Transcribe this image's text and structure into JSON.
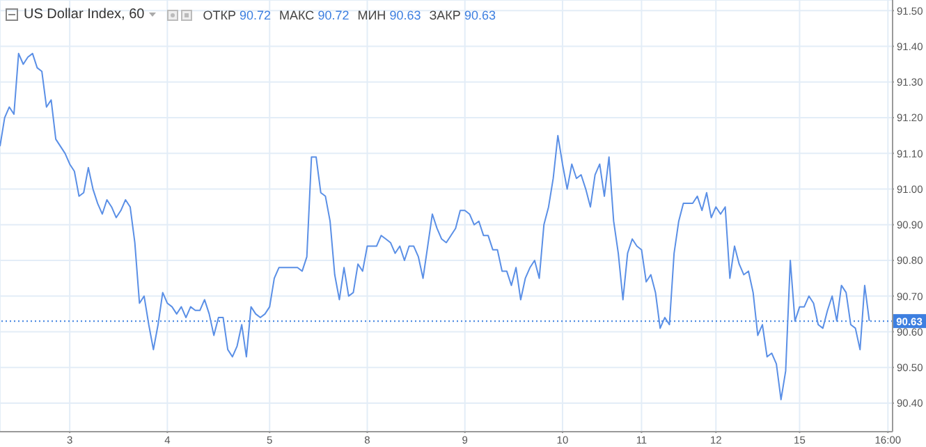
{
  "chart_data": {
    "type": "line",
    "title": "US Dollar Index, 60",
    "annotations": [
      "ОТКР 90.72",
      "МАКС 90.72",
      "МИН 90.63",
      "ЗАКР 90.63"
    ],
    "categories": [
      null,
      null,
      null,
      null,
      null,
      null,
      null,
      null,
      null,
      null,
      null,
      null,
      null,
      null,
      null,
      "3",
      null,
      null,
      null,
      null,
      null,
      null,
      null,
      null,
      null,
      null,
      null,
      null,
      null,
      null,
      null,
      null,
      null,
      null,
      null,
      null,
      "4",
      null,
      null,
      null,
      null,
      null,
      null,
      null,
      null,
      null,
      null,
      null,
      null,
      null,
      null,
      null,
      null,
      null,
      null,
      null,
      null,
      null,
      "5",
      null,
      null,
      null,
      null,
      null,
      null,
      null,
      null,
      null,
      null,
      null,
      null,
      null,
      null,
      null,
      null,
      null,
      null,
      null,
      null,
      "8",
      null,
      null,
      null,
      null,
      null,
      null,
      null,
      null,
      null,
      null,
      null,
      null,
      null,
      null,
      null,
      null,
      null,
      null,
      null,
      null,
      "9",
      null,
      null,
      null,
      null,
      null,
      null,
      null,
      null,
      null,
      null,
      null,
      null,
      null,
      null,
      null,
      null,
      null,
      null,
      null,
      null,
      "10",
      null,
      null,
      null,
      null,
      null,
      null,
      null,
      null,
      null,
      null,
      null,
      null,
      null,
      null,
      null,
      null,
      "11",
      null,
      null,
      null,
      null,
      null,
      null,
      null,
      null,
      null,
      null,
      null,
      null,
      null,
      null,
      null,
      "12",
      null,
      null,
      null,
      null,
      null,
      null,
      null,
      null,
      null,
      null,
      null,
      null,
      null,
      null,
      null,
      null,
      null,
      "15",
      null,
      null,
      null,
      null,
      null,
      null,
      null,
      null,
      null,
      null,
      null,
      null,
      null,
      null,
      null,
      null,
      null,
      null,
      "16:00",
      null
    ],
    "series": [
      {
        "color": "#5a8fe6",
        "values": [
          91.12,
          91.2,
          91.23,
          91.21,
          91.38,
          91.35,
          91.37,
          91.38,
          91.34,
          91.33,
          91.23,
          91.25,
          91.14,
          91.12,
          91.1,
          91.07,
          91.05,
          90.98,
          90.99,
          91.06,
          91.0,
          90.96,
          90.93,
          90.97,
          90.95,
          90.92,
          90.94,
          90.97,
          90.95,
          90.85,
          90.68,
          90.7,
          90.62,
          90.55,
          90.62,
          90.71,
          90.68,
          90.67,
          90.65,
          90.67,
          90.64,
          90.67,
          90.66,
          90.66,
          90.69,
          90.65,
          90.59,
          90.64,
          90.64,
          90.55,
          90.53,
          90.56,
          90.62,
          90.53,
          90.67,
          90.65,
          90.64,
          90.65,
          90.67,
          90.75,
          90.78,
          90.78,
          90.78,
          90.78,
          90.78,
          90.77,
          90.81,
          91.09,
          91.09,
          90.99,
          90.98,
          90.91,
          90.76,
          90.69,
          90.78,
          90.7,
          90.71,
          90.79,
          90.77,
          90.84,
          90.84,
          90.84,
          90.87,
          90.86,
          90.85,
          90.82,
          90.84,
          90.8,
          90.84,
          90.84,
          90.81,
          90.75,
          90.84,
          90.93,
          90.89,
          90.86,
          90.85,
          90.87,
          90.89,
          90.94,
          90.94,
          90.93,
          90.9,
          90.91,
          90.87,
          90.87,
          90.83,
          90.83,
          90.77,
          90.77,
          90.73,
          90.78,
          90.69,
          90.75,
          90.78,
          90.8,
          90.75,
          90.9,
          90.95,
          91.03,
          91.15,
          91.07,
          91.0,
          91.07,
          91.03,
          91.04,
          91.0,
          90.95,
          91.04,
          91.07,
          90.98,
          91.09,
          90.91,
          90.82,
          90.69,
          90.82,
          90.86,
          90.84,
          90.83,
          90.74,
          90.76,
          90.71,
          90.61,
          90.64,
          90.62,
          90.82,
          90.91,
          90.96,
          90.96,
          90.96,
          90.98,
          90.94,
          90.99,
          90.92,
          90.95,
          90.93,
          90.95,
          90.75,
          90.84,
          90.79,
          90.76,
          90.77,
          90.71,
          90.59,
          90.62,
          90.53,
          90.54,
          90.51,
          90.41,
          90.49,
          90.8,
          90.63,
          90.67,
          90.67,
          90.7,
          90.68,
          90.62,
          90.61,
          90.66,
          90.7,
          90.63,
          90.73,
          90.71,
          90.62,
          90.61,
          90.55,
          90.73,
          90.63,
          null,
          null,
          null,
          null,
          null
        ]
      }
    ],
    "ylim": [
      90.32,
      91.53
    ],
    "yticks": [
      {
        "value": 90.4,
        "label": "90.40"
      },
      {
        "value": 90.5,
        "label": "90.50"
      },
      {
        "value": 90.6,
        "label": "90.60"
      },
      {
        "value": 90.7,
        "label": "90.70"
      },
      {
        "value": 90.8,
        "label": "90.80"
      },
      {
        "value": 90.9,
        "label": "90.90"
      },
      {
        "value": 91.0,
        "label": "91.00"
      },
      {
        "value": 91.1,
        "label": "91.10"
      },
      {
        "value": 91.2,
        "label": "91.20"
      },
      {
        "value": 91.3,
        "label": "91.30"
      },
      {
        "value": 91.4,
        "label": "91.40"
      },
      {
        "value": 91.5,
        "label": "91.50"
      }
    ],
    "ref_lines": [
      {
        "axis": "y",
        "value": 90.63,
        "label": "90.63",
        "color": "#3d7fe0",
        "line_style": "dotted"
      }
    ],
    "grid": true,
    "marker": "none",
    "line_style": "solid"
  }
}
